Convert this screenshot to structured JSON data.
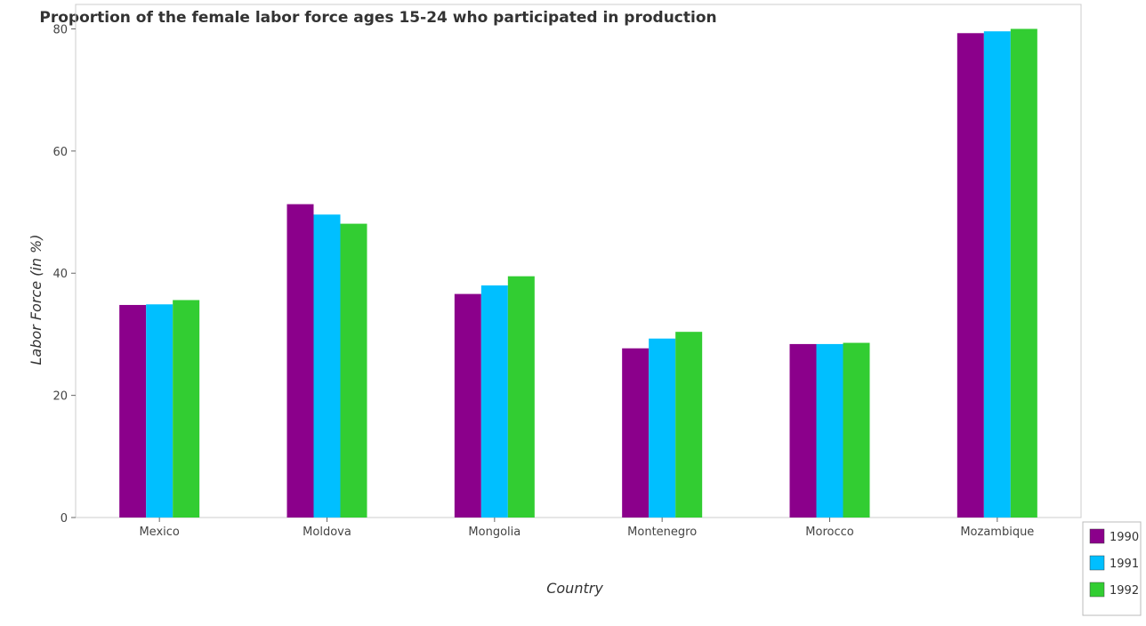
{
  "chart_data": {
    "type": "bar",
    "title": "Proportion of the female labor force ages 15-24 who participated in production",
    "xlabel": "Country",
    "ylabel": "Labor Force (in %)",
    "ylim": [
      0,
      84
    ],
    "yticks": [
      0,
      20,
      40,
      60,
      80
    ],
    "grid": false,
    "legend_position": "bottom-right",
    "categories": [
      "Mexico",
      "Moldova",
      "Mongolia",
      "Montenegro",
      "Morocco",
      "Mozambique"
    ],
    "series": [
      {
        "name": "1990",
        "color": "#8b008b",
        "values": [
          34.8,
          51.3,
          36.6,
          27.7,
          28.4,
          79.3
        ]
      },
      {
        "name": "1991",
        "color": "#00bfff",
        "values": [
          34.9,
          49.6,
          38.0,
          29.3,
          28.4,
          79.6
        ]
      },
      {
        "name": "1992",
        "color": "#32cd32",
        "values": [
          35.6,
          48.1,
          39.5,
          30.4,
          28.6,
          80.0
        ]
      }
    ]
  }
}
